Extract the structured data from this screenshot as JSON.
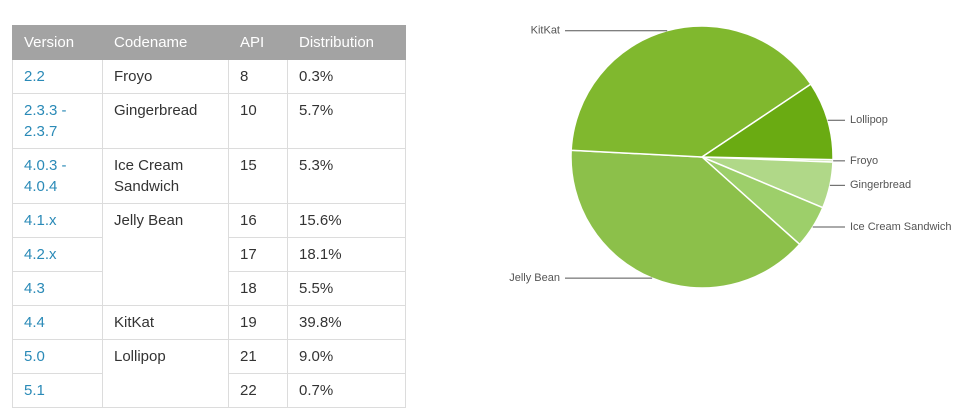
{
  "table": {
    "headers": [
      "Version",
      "Codename",
      "API",
      "Distribution"
    ],
    "rows": [
      {
        "version": "2.2",
        "codename": "Froyo",
        "api": "8",
        "distribution": "0.3%"
      },
      {
        "version": "2.3.3 - 2.3.7",
        "codename": "Gingerbread",
        "api": "10",
        "distribution": "5.7%"
      },
      {
        "version": "4.0.3 - 4.0.4",
        "codename": "Ice Cream Sandwich",
        "api": "15",
        "distribution": "5.3%"
      },
      {
        "version": "4.1.x",
        "codename": "Jelly Bean",
        "api": "16",
        "distribution": "15.6%"
      },
      {
        "version": "4.2.x",
        "api": "17",
        "distribution": "18.1%"
      },
      {
        "version": "4.3",
        "api": "18",
        "distribution": "5.5%"
      },
      {
        "version": "4.4",
        "codename": "KitKat",
        "api": "19",
        "distribution": "39.8%"
      },
      {
        "version": "5.0",
        "codename": "Lollipop",
        "api": "21",
        "distribution": "9.0%"
      },
      {
        "version": "5.1",
        "api": "22",
        "distribution": "0.7%"
      }
    ]
  },
  "chart_data": {
    "type": "pie",
    "categories": [
      "Froyo",
      "Gingerbread",
      "Ice Cream Sandwich",
      "Jelly Bean",
      "KitKat",
      "Lollipop"
    ],
    "values": [
      0.3,
      5.7,
      5.3,
      39.2,
      39.8,
      9.7
    ],
    "colors": [
      "#c5e1a5",
      "#b0d888",
      "#9dcf6a",
      "#8cc04a",
      "#80b82e",
      "#6aab12"
    ]
  }
}
